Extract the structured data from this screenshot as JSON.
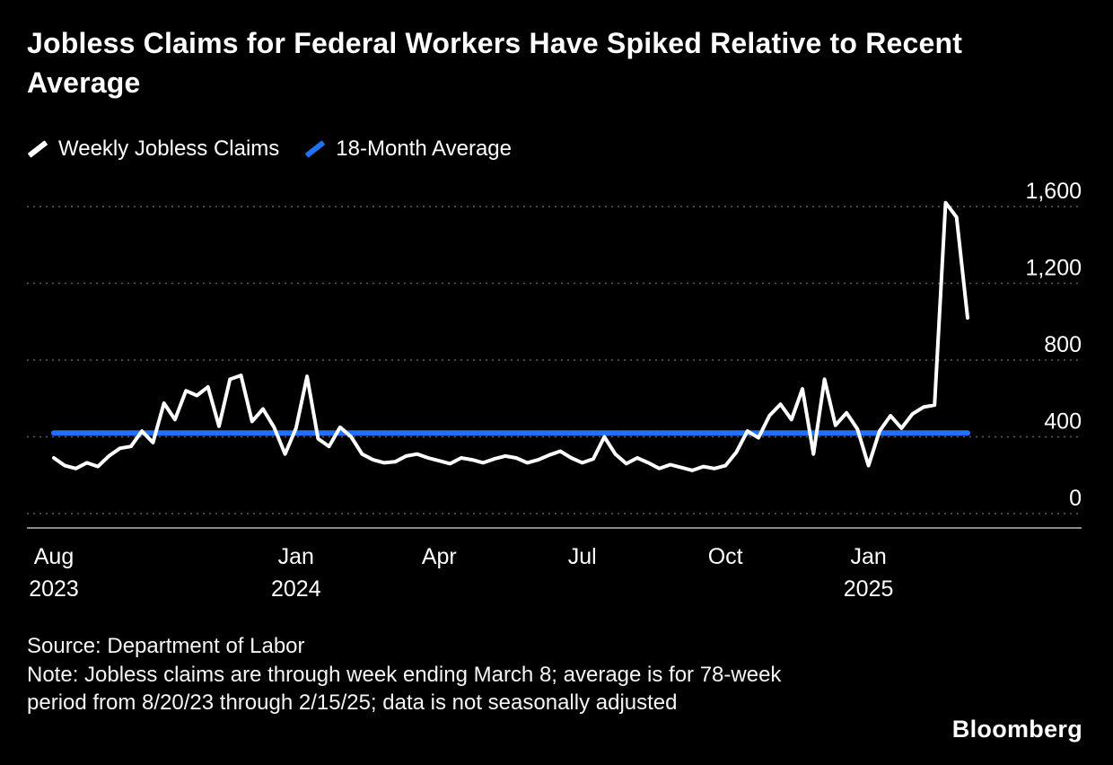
{
  "title": "Jobless Claims for Federal Workers Have Spiked Relative to Recent Average",
  "legend": [
    {
      "label": "Weekly Jobless Claims",
      "color": "#ffffff"
    },
    {
      "label": "18-Month Average",
      "color": "#1f72ff"
    }
  ],
  "footer": {
    "source": "Source: Department of Labor",
    "note": "Note: Jobless claims are through week ending March 8; average is for 78-week period from 8/20/23 through 2/15/25; data is not seasonally adjusted",
    "brand": "Bloomberg"
  },
  "colors": {
    "background": "#000000",
    "series_weekly": "#ffffff",
    "series_average": "#1f72ff",
    "gridline": "#5d5d5d",
    "axis": "#8a8a8a",
    "label": "#ffffff"
  },
  "chart_data": {
    "type": "line",
    "title": "Jobless Claims for Federal Workers Have Spiked Relative to Recent Average",
    "x_range": {
      "start": "Aug 2023",
      "end": "week ending March 8, 2025",
      "interval": "weekly"
    },
    "ylim": [
      0,
      1600
    ],
    "yticks": [
      0,
      400,
      800,
      1200,
      1600
    ],
    "ytick_labels": [
      "0",
      "400",
      "800",
      "1,200",
      "1,600"
    ],
    "grid": "dotted horizontal",
    "legend_position": "top-left",
    "xticks": [
      {
        "week": 0,
        "label": "Aug",
        "sublabel": "2023"
      },
      {
        "week": 22,
        "label": "Jan",
        "sublabel": "2024"
      },
      {
        "week": 35,
        "label": "Apr"
      },
      {
        "week": 48,
        "label": "Jul"
      },
      {
        "week": 61,
        "label": "Oct"
      },
      {
        "week": 74,
        "label": "Jan",
        "sublabel": "2025"
      }
    ],
    "series": [
      {
        "name": "Weekly Jobless Claims",
        "color": "#ffffff",
        "values": [
          290,
          250,
          235,
          265,
          245,
          300,
          340,
          350,
          430,
          370,
          575,
          490,
          640,
          615,
          660,
          455,
          700,
          720,
          480,
          545,
          450,
          310,
          445,
          715,
          390,
          350,
          450,
          400,
          310,
          280,
          265,
          270,
          300,
          310,
          290,
          275,
          260,
          290,
          280,
          265,
          285,
          300,
          290,
          265,
          280,
          305,
          325,
          290,
          265,
          285,
          400,
          310,
          260,
          290,
          265,
          235,
          255,
          240,
          225,
          245,
          235,
          250,
          320,
          430,
          395,
          510,
          570,
          490,
          650,
          310,
          700,
          460,
          525,
          440,
          250,
          430,
          510,
          445,
          520,
          555,
          565,
          1620,
          1545,
          1020
        ]
      },
      {
        "name": "18-Month Average",
        "color": "#1f72ff",
        "value": 420
      }
    ]
  }
}
